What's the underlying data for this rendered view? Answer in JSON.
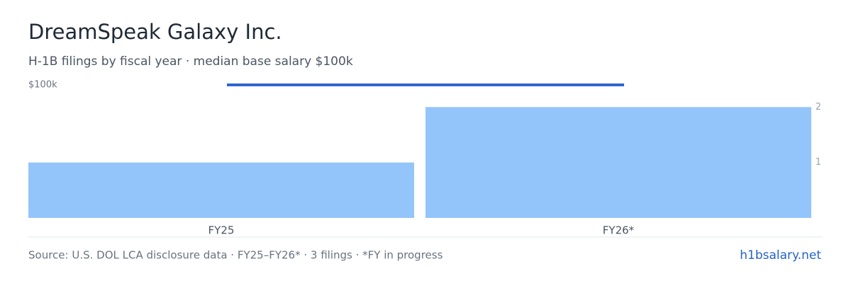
{
  "chart_data": {
    "type": "bar",
    "title": "DreamSpeak Galaxy Inc.",
    "subtitle": "H-1B filings by fiscal year · median base salary $100k",
    "categories": [
      "FY25",
      "FY26*"
    ],
    "series": [
      {
        "type": "bar",
        "color": "#93c5fb",
        "values": [
          1,
          2
        ],
        "axis": "y2"
      },
      {
        "type": "line",
        "color": "#2f66d0",
        "values": [
          100000,
          100000
        ]
      }
    ],
    "ylim": [
      0,
      100000
    ],
    "yticks": [
      {
        "value": 100000,
        "label": "$100k"
      }
    ],
    "y2lim": [
      0,
      2.4
    ],
    "y2ticks": [
      1,
      2
    ],
    "source": "Source: U.S. DOL LCA disclosure data · FY25–FY26* · 3 filings · *FY in progress",
    "brand": "h1bsalary.net"
  }
}
